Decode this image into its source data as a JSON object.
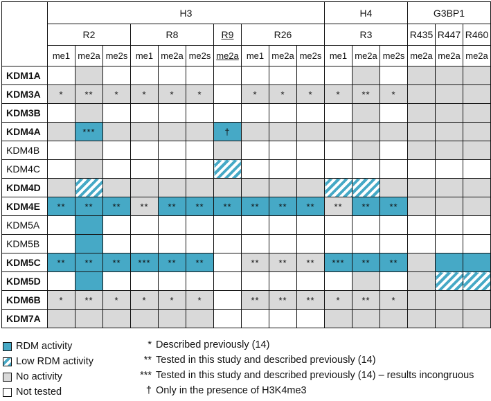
{
  "header": {
    "groups": [
      {
        "label": "H3",
        "span": 10
      },
      {
        "label": "H4",
        "span": 3
      },
      {
        "label": "G3BP1",
        "span": 3
      }
    ],
    "sites": [
      {
        "label": "R2",
        "span": 3,
        "underline": false
      },
      {
        "label": "R8",
        "span": 3,
        "underline": false
      },
      {
        "label": "R9",
        "span": 1,
        "underline": true
      },
      {
        "label": "R26",
        "span": 3,
        "underline": false
      },
      {
        "label": "R3",
        "span": 3,
        "underline": false
      },
      {
        "label": "R435",
        "span": 1,
        "underline": false
      },
      {
        "label": "R447",
        "span": 1,
        "underline": false
      },
      {
        "label": "R460",
        "span": 1,
        "underline": false
      }
    ],
    "marks": [
      "me1",
      "me2a",
      "me2s",
      "me1",
      "me2a",
      "me2s",
      "me2a",
      "me1",
      "me2a",
      "me2s",
      "me1",
      "me2a",
      "me2s",
      "me2a",
      "me2a",
      "me2a"
    ],
    "underlined_mark_index": 6
  },
  "colors": {
    "rdm_activity": "#46a9c6",
    "no_activity": "#d9d9d9",
    "not_tested": "#ffffff"
  },
  "rows": [
    {
      "label": "KDM1A",
      "bold": true,
      "status": "WGWWWWWWWWWGWGGG",
      "marks": [
        "",
        "",
        "",
        "",
        "",
        "",
        "",
        "",
        "",
        "",
        "",
        "",
        "",
        "",
        "",
        ""
      ]
    },
    {
      "label": "KDM3A",
      "bold": true,
      "status": "GGGGGGWGGGGGGGGG",
      "marks": [
        "*",
        "**",
        "*",
        "*",
        "*",
        "*",
        "",
        "*",
        "*",
        "*",
        "*",
        "**",
        "*",
        "",
        "",
        ""
      ]
    },
    {
      "label": "KDM3B",
      "bold": true,
      "status": "WGWWWWWWWWWGWGGG",
      "marks": [
        "",
        "",
        "",
        "",
        "",
        "",
        "",
        "",
        "",
        "",
        "",
        "",
        "",
        "",
        "",
        ""
      ]
    },
    {
      "label": "KDM4A",
      "bold": true,
      "status": "GBGGGGBGGGGGGGGG",
      "marks": [
        "",
        "***",
        "",
        "",
        "",
        "",
        "†",
        "",
        "",
        "",
        "",
        "",
        "",
        "",
        "",
        ""
      ]
    },
    {
      "label": "KDM4B",
      "bold": false,
      "status": "WGWWWWGWWWWGWGGG",
      "marks": [
        "",
        "",
        "",
        "",
        "",
        "",
        "",
        "",
        "",
        "",
        "",
        "",
        "",
        "",
        "",
        ""
      ]
    },
    {
      "label": "KDM4C",
      "bold": false,
      "status": "WGWWWWHWWWWWWWWW",
      "marks": [
        "",
        "",
        "",
        "",
        "",
        "",
        "",
        "",
        "",
        "",
        "",
        "",
        "",
        "",
        "",
        ""
      ]
    },
    {
      "label": "KDM4D",
      "bold": true,
      "status": "GHGGGGGGGGHHGGGG",
      "marks": [
        "",
        "",
        "",
        "",
        "",
        "",
        "",
        "",
        "",
        "",
        "",
        "",
        "",
        "",
        "",
        ""
      ]
    },
    {
      "label": "KDM4E",
      "bold": true,
      "status": "BBBGBBBBBBGBBGGG",
      "marks": [
        "**",
        "**",
        "**",
        "**",
        "**",
        "**",
        "**",
        "**",
        "**",
        "**",
        "**",
        "**",
        "**",
        "",
        "",
        ""
      ]
    },
    {
      "label": "KDM5A",
      "bold": false,
      "status": "WBWWWWWWWWWWWWWW",
      "marks": [
        "",
        "",
        "",
        "",
        "",
        "",
        "",
        "",
        "",
        "",
        "",
        "",
        "",
        "",
        "",
        ""
      ]
    },
    {
      "label": "KDM5B",
      "bold": false,
      "status": "WBWWWWWWWWWWWWWW",
      "marks": [
        "",
        "",
        "",
        "",
        "",
        "",
        "",
        "",
        "",
        "",
        "",
        "",
        "",
        "",
        "",
        ""
      ]
    },
    {
      "label": "KDM5C",
      "bold": true,
      "status": "BBBBBBWGGGBBBGBB",
      "marks": [
        "**",
        "**",
        "**",
        "***",
        "**",
        "**",
        "",
        "**",
        "**",
        "**",
        "***",
        "**",
        "**",
        "",
        "",
        ""
      ]
    },
    {
      "label": "KDM5D",
      "bold": true,
      "status": "WBWWWWWWWWWGWGHH",
      "marks": [
        "",
        "",
        "",
        "",
        "",
        "",
        "",
        "",
        "",
        "",
        "",
        "",
        "",
        "",
        "",
        ""
      ]
    },
    {
      "label": "KDM6B",
      "bold": true,
      "status": "GGGGGGWGGGGGGGGG",
      "marks": [
        "*",
        "**",
        "*",
        "*",
        "*",
        "*",
        "",
        "**",
        "**",
        "**",
        "*",
        "**",
        "*",
        "",
        "",
        ""
      ]
    },
    {
      "label": "KDM7A",
      "bold": true,
      "status": "GGGGGGWWWWGGGGGG",
      "marks": [
        "",
        "",
        "",
        "",
        "",
        "",
        "",
        "",
        "",
        "",
        "",
        "",
        "",
        "",
        "",
        ""
      ]
    }
  ],
  "legend": {
    "swatches": [
      {
        "label": "RDM activity",
        "type": "B"
      },
      {
        "label": "Low RDM activity",
        "type": "H"
      },
      {
        "label": "No activity",
        "type": "G"
      },
      {
        "label": "Not tested",
        "type": "W"
      }
    ],
    "notes": [
      {
        "symbol": "*",
        "text": "Described previously (14)"
      },
      {
        "symbol": "**",
        "text": "Tested in this study and described previously (14)"
      },
      {
        "symbol": "***",
        "text": "Tested in this study and described previously (14) – results incongruous"
      },
      {
        "symbol": "†",
        "text": "Only in the presence of H3K4me3"
      }
    ]
  }
}
